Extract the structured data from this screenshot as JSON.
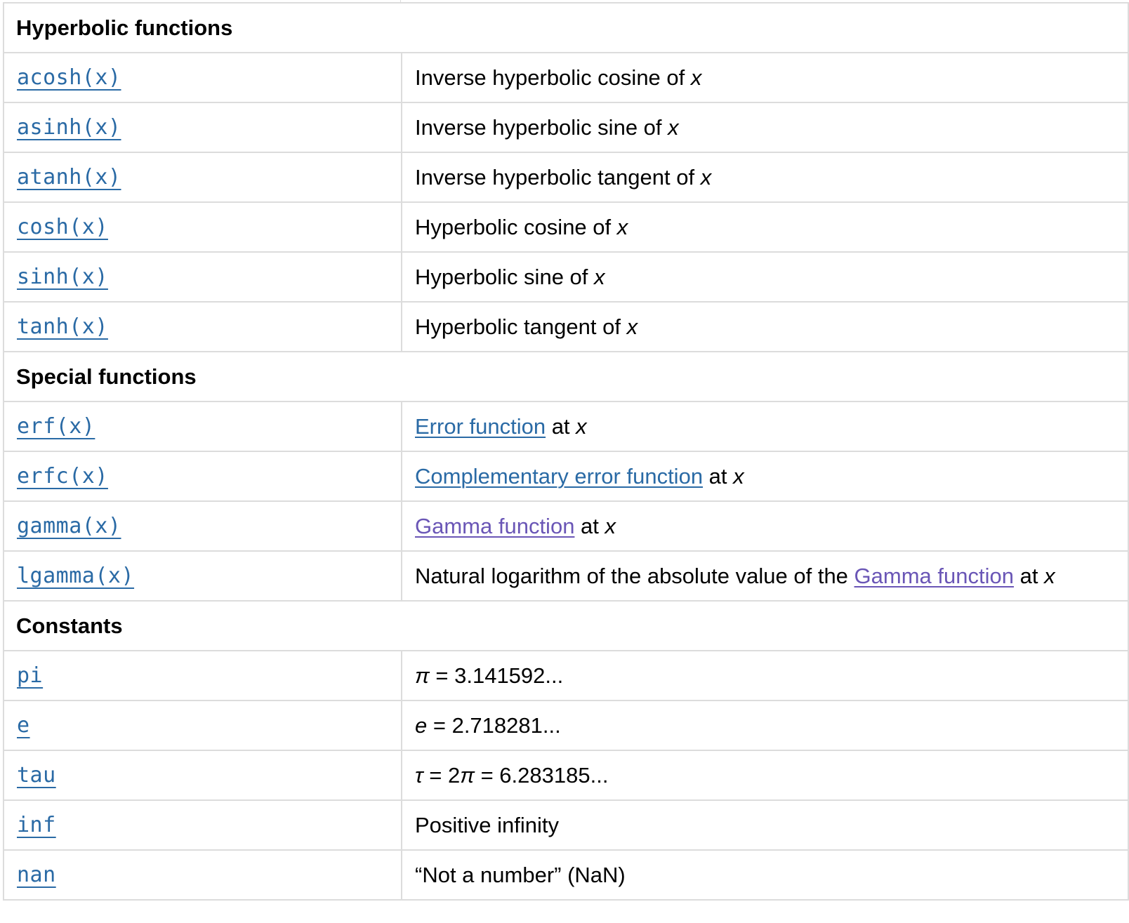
{
  "sections": [
    {
      "title": "Hyperbolic functions",
      "rows": [
        {
          "name": "acosh(x)",
          "desc": "Inverse hyperbolic cosine of ",
          "var": "x"
        },
        {
          "name": "asinh(x)",
          "desc": "Inverse hyperbolic sine of ",
          "var": "x"
        },
        {
          "name": "atanh(x)",
          "desc": "Inverse hyperbolic tangent of ",
          "var": "x"
        },
        {
          "name": "cosh(x)",
          "desc": "Hyperbolic cosine of ",
          "var": "x"
        },
        {
          "name": "sinh(x)",
          "desc": "Hyperbolic sine of ",
          "var": "x"
        },
        {
          "name": "tanh(x)",
          "desc": "Hyperbolic tangent of ",
          "var": "x"
        }
      ]
    },
    {
      "title": "Special functions",
      "rows": [
        {
          "name": "erf(x)",
          "link": "Error function",
          "after": " at ",
          "var": "x"
        },
        {
          "name": "erfc(x)",
          "link": "Complementary error function",
          "after": " at ",
          "var": "x"
        },
        {
          "name": "gamma(x)",
          "link": "Gamma function",
          "after": " at ",
          "var": "x"
        },
        {
          "name": "lgamma(x)",
          "prefix": "Natural logarithm of the absolute value of the ",
          "link": "Gamma function",
          "after": " at ",
          "var": "x"
        }
      ]
    },
    {
      "title": "Constants",
      "rows": [
        {
          "name": "pi",
          "sym": "π",
          "value": " = 3.141592..."
        },
        {
          "name": "e",
          "sym": "e",
          "value": " = 2.718281..."
        },
        {
          "name": "tau",
          "sym": "τ",
          "mid": " = 2",
          "sym2": "π",
          "value": " = 6.283185..."
        },
        {
          "name": "inf",
          "desc": "Positive infinity"
        },
        {
          "name": "nan",
          "desc": "“Not a number” (NaN)"
        }
      ]
    }
  ],
  "colors": {
    "link": "#2a6aa5",
    "visited_link": "#6a56b6",
    "border": "#dcdcdc",
    "text": "#000000"
  }
}
